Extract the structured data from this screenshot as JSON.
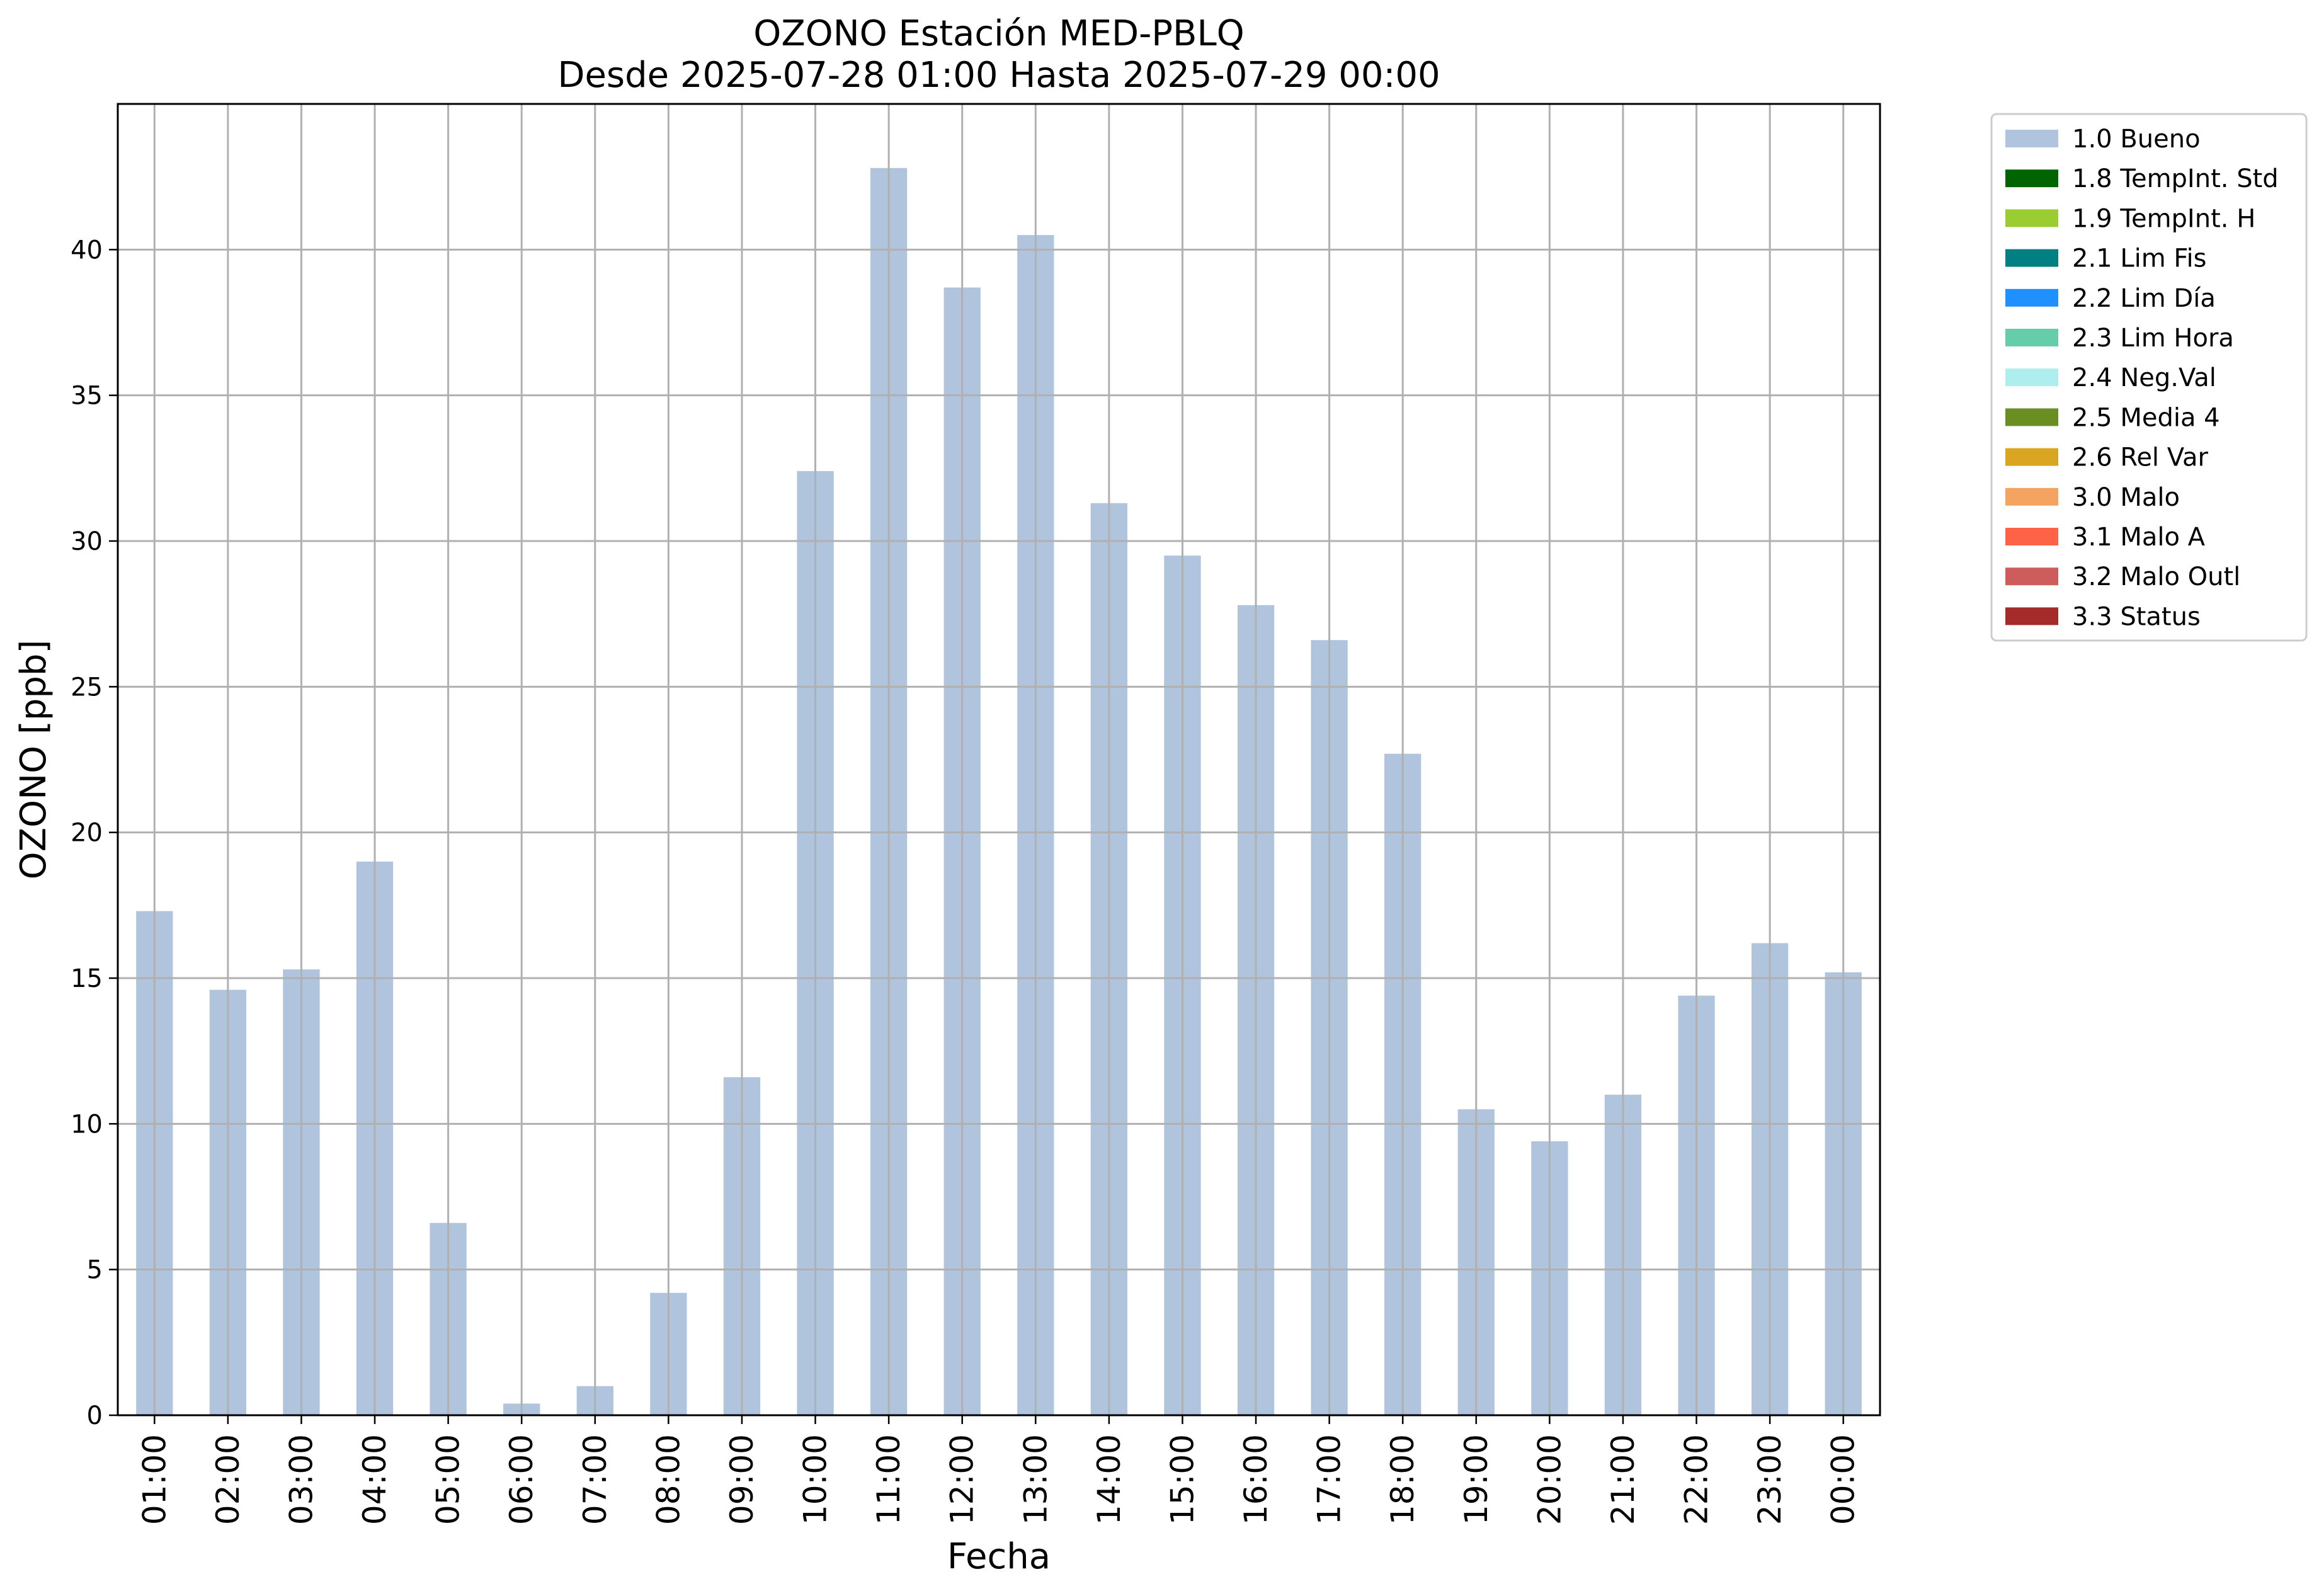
{
  "chart_data": {
    "type": "bar",
    "title": "OZONO Estación MED-PBLQ",
    "subtitle": "Desde 2025-07-28 01:00 Hasta 2025-07-29 00:00",
    "xlabel": "Fecha",
    "ylabel": "OZONO [ppb]",
    "categories": [
      "01:00",
      "02:00",
      "03:00",
      "04:00",
      "05:00",
      "06:00",
      "07:00",
      "08:00",
      "09:00",
      "10:00",
      "11:00",
      "12:00",
      "13:00",
      "14:00",
      "15:00",
      "16:00",
      "17:00",
      "18:00",
      "19:00",
      "20:00",
      "21:00",
      "22:00",
      "23:00",
      "00:00"
    ],
    "series": [
      {
        "name": "1.0 Bueno",
        "color": "#b0c4de",
        "values": [
          17.3,
          14.6,
          15.3,
          19.0,
          6.6,
          0.4,
          1.0,
          4.2,
          11.6,
          32.4,
          42.8,
          38.7,
          40.5,
          31.3,
          29.5,
          27.8,
          26.6,
          22.7,
          10.5,
          9.4,
          11.0,
          14.4,
          16.2,
          15.2
        ]
      }
    ],
    "ylim": [
      0,
      45
    ],
    "yticks": [
      0,
      5,
      10,
      15,
      20,
      25,
      30,
      35,
      40
    ],
    "grid": true,
    "legend_position": "outside-top-right",
    "legend": [
      {
        "label": "1.0 Bueno",
        "color": "#b0c4de"
      },
      {
        "label": "1.8 TempInt. Std",
        "color": "#006400"
      },
      {
        "label": "1.9 TempInt. H",
        "color": "#9acd32"
      },
      {
        "label": "2.1 Lim Fis",
        "color": "#008080"
      },
      {
        "label": "2.2 Lim Día",
        "color": "#1e90ff"
      },
      {
        "label": "2.3 Lim Hora",
        "color": "#66cdaa"
      },
      {
        "label": "2.4 Neg.Val",
        "color": "#afeeee"
      },
      {
        "label": "2.5 Media 4",
        "color": "#6b8e23"
      },
      {
        "label": "2.6 Rel Var",
        "color": "#daa520"
      },
      {
        "label": "3.0 Malo",
        "color": "#f4a460"
      },
      {
        "label": "3.1 Malo A",
        "color": "#ff6347"
      },
      {
        "label": "3.2 Malo Outl",
        "color": "#cd5c5c"
      },
      {
        "label": "3.3 Status",
        "color": "#a52a2a"
      }
    ]
  }
}
